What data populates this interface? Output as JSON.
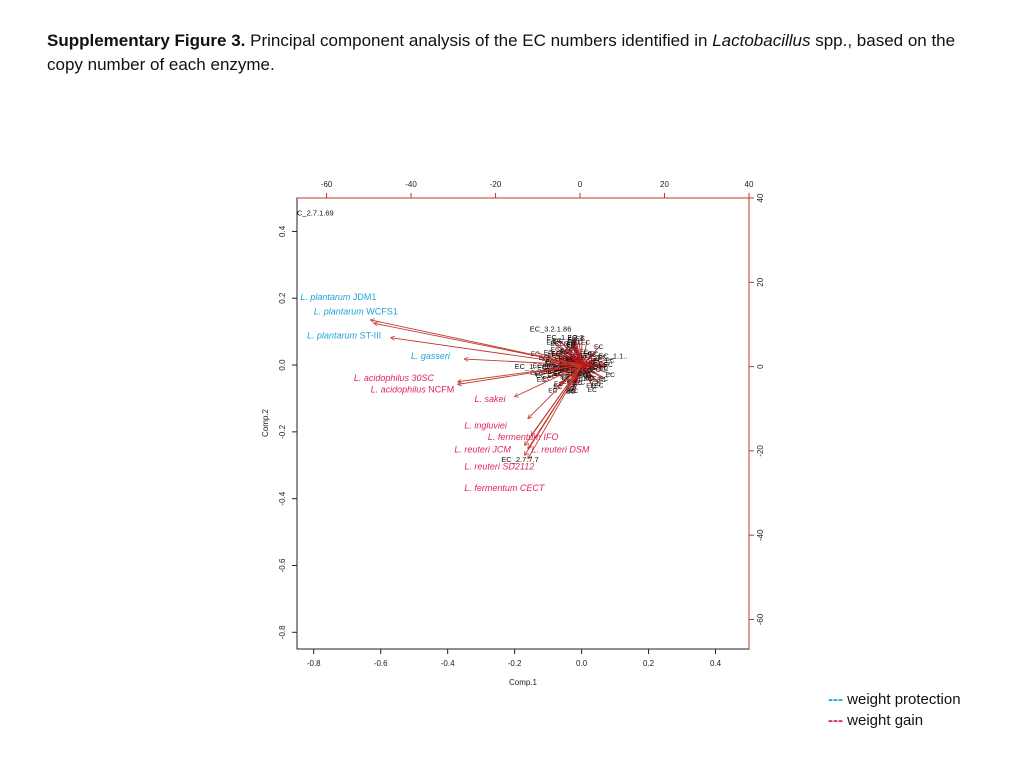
{
  "caption": {
    "bold": "Supplementary Figure 3.",
    "text_before_italic": " Principal component analysis of the EC numbers identified in ",
    "italic": "Lactobacillus",
    "text_after_italic": " spp., based on the copy number of each enzyme."
  },
  "legend": [
    {
      "dash": "---",
      "label": "weight protection",
      "color": "#1fa3d6"
    },
    {
      "dash": "---",
      "label": "weight gain",
      "color": "#e3245a"
    }
  ],
  "chart_data": {
    "type": "scatter",
    "title": "",
    "xlabel": "Comp.1",
    "ylabel": "Comp.2",
    "xlim": [
      -0.85,
      0.5
    ],
    "ylim": [
      -0.85,
      0.5
    ],
    "x_ticks": [
      "-0.8",
      "-0.6",
      "-0.4",
      "-0.2",
      "0.0",
      "0.2",
      "0.4"
    ],
    "y_ticks": [
      "-0.8",
      "-0.6",
      "-0.4",
      "-0.2",
      "0.0",
      "0.2",
      "0.4"
    ],
    "top_ticks": [
      "-60",
      "-40",
      "-20",
      "0",
      "20",
      "40"
    ],
    "right_ticks": [
      "-60",
      "-40",
      "-20",
      "0",
      "20",
      "40"
    ],
    "top_lim": [
      -67,
      40
    ],
    "right_lim": [
      -67,
      40
    ],
    "grid": false,
    "arrow_color": "#c0392b",
    "colors": {
      "protection": "#1fa3d6",
      "gain": "#e3245a"
    },
    "species": [
      {
        "name": "L. plantarum",
        "strain": "JDM1",
        "group": "protection",
        "x": -0.63,
        "y": 0.135,
        "tx": -0.84,
        "ty": 0.195
      },
      {
        "name": "L. plantarum",
        "strain": "WCFS1",
        "group": "protection",
        "x": -0.62,
        "y": 0.125,
        "tx": -0.8,
        "ty": 0.152
      },
      {
        "name": "L. plantarum",
        "strain": "ST-III",
        "group": "protection",
        "x": -0.57,
        "y": 0.082,
        "tx": -0.82,
        "ty": 0.08
      },
      {
        "name": "L. gasseri",
        "strain": "",
        "group": "protection",
        "x": -0.35,
        "y": 0.018,
        "tx": -0.51,
        "ty": 0.018
      },
      {
        "name": "L. acidophilus 30SC",
        "strain": "",
        "group": "gain",
        "x": -0.37,
        "y": -0.05,
        "tx": -0.68,
        "ty": -0.048
      },
      {
        "name": "L. acidophilus",
        "strain": "NCFM",
        "group": "gain",
        "x": -0.37,
        "y": -0.058,
        "tx": -0.63,
        "ty": -0.082
      },
      {
        "name": "L. sakei",
        "strain": "",
        "group": "gain",
        "x": -0.2,
        "y": -0.095,
        "tx": -0.32,
        "ty": -0.11
      },
      {
        "name": "L. ingluviei",
        "strain": "",
        "group": "gain",
        "x": -0.16,
        "y": -0.16,
        "tx": -0.35,
        "ty": -0.19
      },
      {
        "name": "L. fermentum IFO",
        "strain": "",
        "group": "gain",
        "x": -0.15,
        "y": -0.21,
        "tx": -0.28,
        "ty": -0.225
      },
      {
        "name": "L. reuteri JCM",
        "strain": "",
        "group": "gain",
        "x": -0.17,
        "y": -0.24,
        "tx": -0.38,
        "ty": -0.262
      },
      {
        "name": "L. reuteri DSM",
        "strain": "",
        "group": "gain",
        "x": -0.16,
        "y": -0.25,
        "tx": -0.15,
        "ty": -0.262
      },
      {
        "name": "L. reuteri SD2112",
        "strain": "",
        "group": "gain",
        "x": -0.17,
        "y": -0.27,
        "tx": -0.35,
        "ty": -0.313
      },
      {
        "name": "L. fermentum CECT",
        "strain": "",
        "group": "gain",
        "x": -0.16,
        "y": -0.28,
        "tx": -0.35,
        "ty": -0.377
      }
    ],
    "ec_labels": [
      {
        "label": "C_2.7.1.69",
        "x": -0.85,
        "y": 0.448
      },
      {
        "label": "EC_3.2.1.86",
        "x": -0.155,
        "y": 0.1
      },
      {
        "label": "EC_1.2.3.3",
        "x": -0.105,
        "y": 0.075
      },
      {
        "label": "EC_1.",
        "x": -0.2,
        "y": -0.012
      },
      {
        "label": "EC_2.7.7.7",
        "x": -0.24,
        "y": -0.29
      },
      {
        "label": "EC_1.1..",
        "x": 0.05,
        "y": 0.02
      }
    ]
  }
}
